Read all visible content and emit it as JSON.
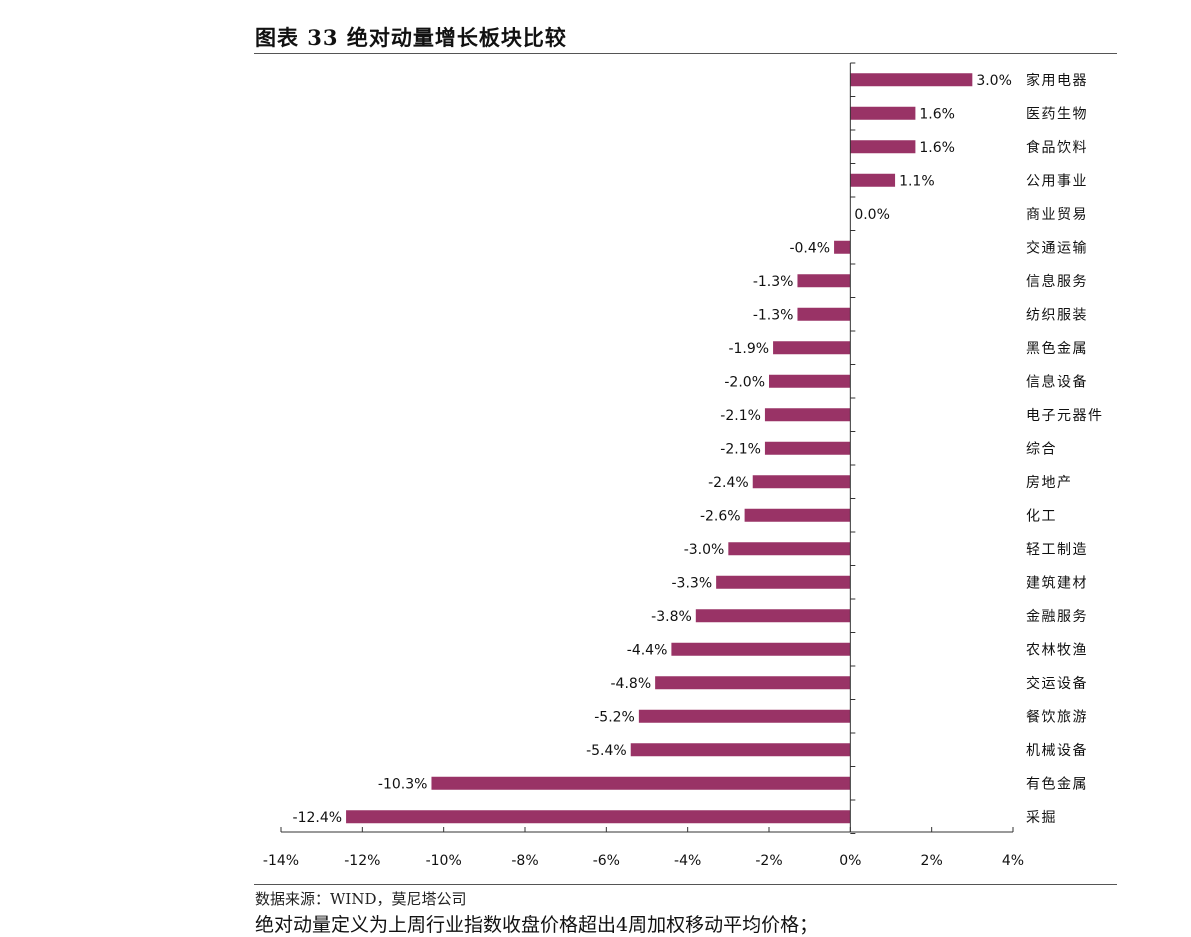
{
  "header": {
    "title": "图表 33 绝对动量增长板块比较"
  },
  "chart_data": {
    "type": "bar",
    "orientation": "horizontal",
    "categories": [
      "家用电器",
      "医药生物",
      "食品饮料",
      "公用事业",
      "商业贸易",
      "交通运输",
      "信息服务",
      "纺织服装",
      "黑色金属",
      "信息设备",
      "电子元器件",
      "综合",
      "房地产",
      "化工",
      "轻工制造",
      "建筑建材",
      "金融服务",
      "农林牧渔",
      "交运设备",
      "餐饮旅游",
      "机械设备",
      "有色金属",
      "采掘"
    ],
    "values": [
      3.0,
      1.6,
      1.6,
      1.1,
      0.0,
      -0.4,
      -1.3,
      -1.3,
      -1.9,
      -2.0,
      -2.1,
      -2.1,
      -2.4,
      -2.6,
      -3.0,
      -3.3,
      -3.8,
      -4.4,
      -4.8,
      -5.2,
      -5.4,
      -10.3,
      -12.4
    ],
    "value_labels": [
      "3.0%",
      "1.6%",
      "1.6%",
      "1.1%",
      "0.0%",
      "-0.4%",
      "-1.3%",
      "-1.3%",
      "-1.9%",
      "-2.0%",
      "-2.1%",
      "-2.1%",
      "-2.4%",
      "-2.6%",
      "-3.0%",
      "-3.3%",
      "-3.8%",
      "-4.4%",
      "-4.8%",
      "-5.2%",
      "-5.4%",
      "-10.3%",
      "-12.4%"
    ],
    "xlim": [
      -14,
      4
    ],
    "xticks": [
      -14,
      -12,
      -10,
      -8,
      -6,
      -4,
      -2,
      0,
      2,
      4
    ],
    "xtick_labels": [
      "-14%",
      "-12%",
      "-10%",
      "-8%",
      "-6%",
      "-4%",
      "-2%",
      "0%",
      "2%",
      "4%"
    ],
    "bar_color": "#993366",
    "grid": false
  },
  "footer": {
    "source": "数据来源：WIND，莫尼塔公司",
    "note": "绝对动量定义为上周行业指数收盘价格超出4周加权移动平均价格；"
  }
}
